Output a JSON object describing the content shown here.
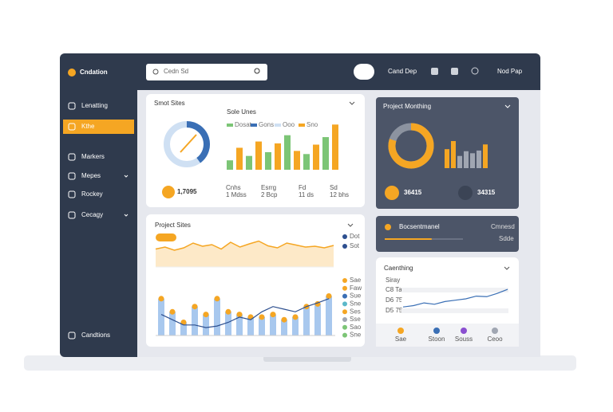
{
  "app": {
    "logo": "Cndation",
    "search": "Cedn Sd",
    "top_links": [
      "Cand Dep",
      "Nod Pap"
    ]
  },
  "sidebar": {
    "items": [
      "Lenatting",
      "Kthe",
      "Markers",
      "Mepes",
      "Rockey",
      "Cecagy"
    ],
    "active": 1,
    "footer": "Candtions"
  },
  "smart_sites": {
    "title": "Smot Sites",
    "chart_title": "Sole Unes",
    "legend": [
      "Dosat",
      "Gons",
      "Ooo",
      "Sno"
    ],
    "legend_colors": [
      "#7cc576",
      "#3a6fb5",
      "#cfe0f3",
      "#f5a623"
    ],
    "donut_value": 40,
    "donut_lim": [
      0,
      100
    ],
    "bars": [
      15,
      35,
      22,
      45,
      28,
      42,
      55,
      30,
      25,
      40,
      52,
      72
    ],
    "bar_colors": [
      "#7cc576",
      "#f5a623"
    ],
    "ylim": [
      0,
      80
    ],
    "stat": "1,7095",
    "stats": [
      [
        "Cnhs",
        "1 Mdss"
      ],
      [
        "Esrrg",
        "2 Bcp"
      ],
      [
        "Fd",
        "11 ds"
      ],
      [
        "Sd",
        "12 bhs"
      ]
    ]
  },
  "project_monthing": {
    "title": "Project Monthing",
    "donut_value": 80,
    "donut_lim": [
      0,
      100
    ],
    "bars": [
      28,
      40,
      18,
      25,
      22,
      26,
      35
    ],
    "bar_colors": [
      "#f5a623",
      "#f5a623",
      "#a0a6b2",
      "#a0a6b2",
      "#a0a6b2",
      "#a0a6b2",
      "#f5a623"
    ],
    "ylim": [
      0,
      60
    ],
    "stats": [
      "36415",
      "34315"
    ]
  },
  "notice": {
    "title": "Bocsentmanel",
    "right": "Cmnesd",
    "progress": 60,
    "progress_lim": [
      0,
      100
    ],
    "progress_label": "Sdde"
  },
  "project_sites": {
    "title": "Project Sites",
    "area": [
      55,
      60,
      52,
      58,
      70,
      62,
      66,
      55,
      72,
      60,
      68,
      75,
      63,
      58,
      70,
      65,
      60,
      62,
      58,
      64
    ],
    "area_ylim": [
      0,
      100
    ],
    "bars": [
      70,
      45,
      25,
      55,
      40,
      70,
      45,
      40,
      35,
      35,
      40,
      30,
      35,
      55,
      60,
      75
    ],
    "line": [
      40,
      30,
      20,
      20,
      15,
      18,
      25,
      35,
      30,
      45,
      55,
      50,
      45,
      55,
      62,
      70
    ],
    "ylim": [
      0,
      100
    ],
    "legend_top": [
      "Dot",
      "Sot"
    ],
    "legend": [
      "Sae",
      "Faw",
      "Sue",
      "Sne",
      "Ses",
      "Sse",
      "Sao",
      "Sne"
    ],
    "legend_colors": [
      "#f5a623",
      "#f5a623",
      "#3a6fb5",
      "#5bb8c9",
      "#f5a623",
      "#a0a6b2",
      "#7cc576",
      "#7cc576"
    ]
  },
  "caenthing": {
    "title": "Caenthing",
    "y_labels": [
      "Siray",
      "C8 Ta",
      "D6 75",
      "D5 75"
    ],
    "line": [
      20,
      25,
      35,
      30,
      40,
      45,
      50,
      60,
      58,
      70,
      85
    ],
    "ylim": [
      0,
      100
    ],
    "actions": [
      "Sae",
      "Stoon",
      "Souss",
      "Ceoo"
    ],
    "action_colors": [
      "#f5a623",
      "#3a6fb5",
      "#8a4fd0",
      "#a0a6b2"
    ]
  }
}
